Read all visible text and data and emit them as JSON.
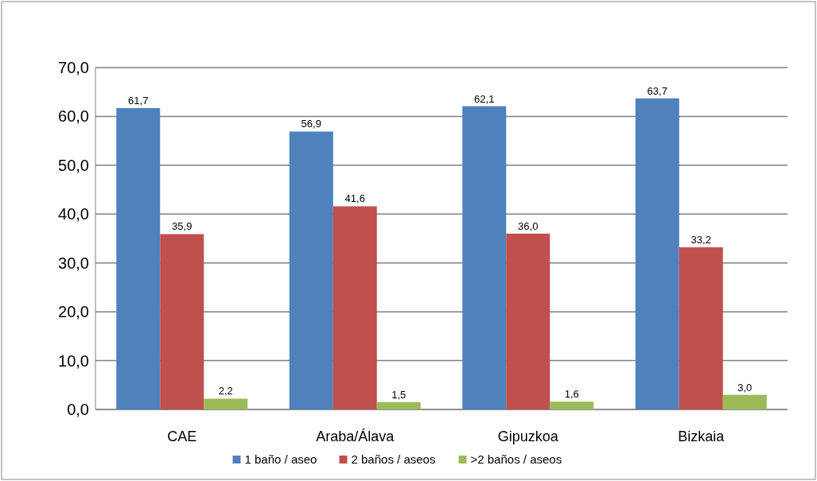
{
  "chart_data": {
    "type": "bar",
    "categories": [
      "CAE",
      "Araba/Álava",
      "Gipuzkoa",
      "Bizkaia"
    ],
    "series": [
      {
        "name": "1 baño / aseo",
        "color": "#4f81bd",
        "values": [
          61.7,
          56.9,
          62.1,
          63.7
        ],
        "value_labels": [
          "61,7",
          "56,9",
          "62,1",
          "63,7"
        ]
      },
      {
        "name": "2 baños / aseos",
        "color": "#c0504d",
        "values": [
          35.9,
          41.6,
          36.0,
          33.2
        ],
        "value_labels": [
          "35,9",
          "41,6",
          "36,0",
          "33,2"
        ]
      },
      {
        "name": ">2 baños / aseos",
        "color": "#9bbb59",
        "values": [
          2.2,
          1.5,
          1.6,
          3.0
        ],
        "value_labels": [
          "2,2",
          "1,5",
          "1,6",
          "3,0"
        ]
      }
    ],
    "ylim": [
      0,
      70
    ],
    "yticks": [
      {
        "value": 0,
        "label": "0,0"
      },
      {
        "value": 10,
        "label": "10,0"
      },
      {
        "value": 20,
        "label": "20,0"
      },
      {
        "value": 30,
        "label": "30,0"
      },
      {
        "value": 40,
        "label": "40,0"
      },
      {
        "value": 50,
        "label": "50,0"
      },
      {
        "value": 60,
        "label": "60,0"
      },
      {
        "value": 70,
        "label": "70,0"
      }
    ],
    "grid": "y",
    "legend": "bottom"
  }
}
